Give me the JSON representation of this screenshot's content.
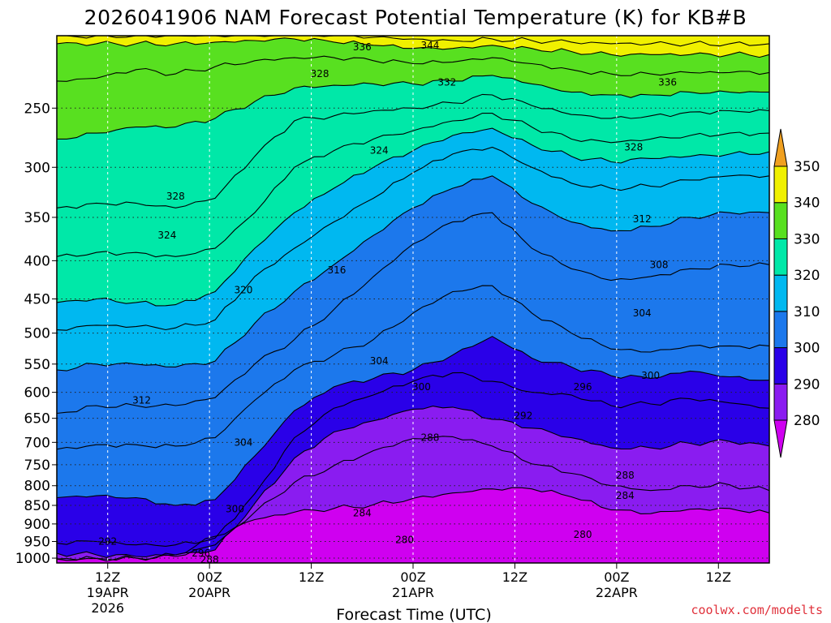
{
  "chart_data": {
    "type": "area",
    "title": "2026041906 NAM Forecast Potential Temperature (K) for KB#B",
    "xlabel": "Forecast Time (UTC)",
    "ylabel": "",
    "credit": "coolwx.com/modelts",
    "y_ticks": [
      250,
      300,
      350,
      400,
      450,
      500,
      550,
      600,
      650,
      700,
      750,
      800,
      850,
      900,
      950,
      1000
    ],
    "ylim": [
      200,
      1015
    ],
    "y_scale": "log-pressure (inverted)",
    "x_range_hours": [
      0,
      84
    ],
    "x_ticks": [
      {
        "hour": 6,
        "line1": "12Z",
        "line2": "19APR",
        "line3": "2026"
      },
      {
        "hour": 18,
        "line1": "00Z",
        "line2": "20APR",
        "line3": ""
      },
      {
        "hour": 30,
        "line1": "12Z",
        "line2": "",
        "line3": ""
      },
      {
        "hour": 42,
        "line1": "00Z",
        "line2": "21APR",
        "line3": ""
      },
      {
        "hour": 54,
        "line1": "12Z",
        "line2": "",
        "line3": ""
      },
      {
        "hour": 66,
        "line1": "00Z",
        "line2": "22APR",
        "line3": ""
      },
      {
        "hour": 78,
        "line1": "12Z",
        "line2": "",
        "line3": ""
      }
    ],
    "colorbar": {
      "levels": [
        280,
        290,
        300,
        310,
        320,
        330,
        340,
        350
      ],
      "colors": [
        "#cf00f0",
        "#8a1cf0",
        "#2a00e8",
        "#1c78ec",
        "#00b8f0",
        "#00e8a8",
        "#58e020",
        "#f0f000",
        "#f0a020"
      ]
    },
    "series": [
      {
        "value": 284,
        "p": [
          1003,
          1001,
          1000,
          990,
          935,
          888,
          868,
          858,
          848,
          832,
          818,
          808,
          808,
          828,
          862,
          872,
          860,
          858,
          870
        ]
      },
      {
        "value": 288,
        "p": [
          1003,
          1001,
          1000,
          995,
          960,
          868,
          792,
          752,
          718,
          692,
          688,
          708,
          748,
          770,
          800,
          812,
          800,
          798,
          812
        ]
      },
      {
        "value": 292,
        "p": [
          985,
          990,
          995,
          990,
          975,
          845,
          735,
          678,
          655,
          632,
          628,
          652,
          670,
          690,
          712,
          712,
          702,
          698,
          708
        ]
      },
      {
        "value": 296,
        "p": [
          955,
          950,
          960,
          960,
          940,
          820,
          690,
          630,
          605,
          580,
          565,
          580,
          600,
          605,
          625,
          622,
          612,
          620,
          630
        ]
      },
      {
        "value": 300,
        "p": [
          830,
          825,
          830,
          850,
          835,
          730,
          635,
          590,
          575,
          560,
          535,
          505,
          540,
          555,
          570,
          575,
          562,
          572,
          578
        ]
      },
      {
        "value": 304,
        "p": [
          715,
          705,
          705,
          708,
          690,
          615,
          560,
          535,
          510,
          470,
          440,
          432,
          470,
          500,
          525,
          530,
          520,
          520,
          520
        ]
      },
      {
        "value": 308,
        "p": [
          640,
          625,
          625,
          625,
          610,
          550,
          510,
          465,
          420,
          380,
          355,
          345,
          385,
          410,
          425,
          420,
          410,
          405,
          405
        ]
      },
      {
        "value": 312,
        "p": [
          560,
          550,
          550,
          555,
          545,
          485,
          440,
          405,
          370,
          340,
          320,
          308,
          335,
          355,
          365,
          360,
          350,
          345,
          345
        ]
      },
      {
        "value": 316,
        "p": [
          495,
          488,
          490,
          492,
          480,
          420,
          385,
          355,
          330,
          305,
          288,
          282,
          300,
          315,
          320,
          318,
          312,
          308,
          308
        ]
      },
      {
        "value": 320,
        "p": [
          455,
          450,
          455,
          458,
          440,
          385,
          345,
          320,
          300,
          285,
          272,
          266,
          280,
          290,
          295,
          292,
          290,
          288,
          286
        ]
      },
      {
        "value": 324,
        "p": [
          395,
          390,
          390,
          395,
          385,
          345,
          300,
          285,
          275,
          268,
          260,
          254,
          265,
          275,
          278,
          275,
          272,
          270,
          270
        ]
      },
      {
        "value": 328,
        "p": [
          340,
          335,
          335,
          340,
          330,
          290,
          260,
          256,
          252,
          250,
          246,
          240,
          248,
          255,
          258,
          256,
          253,
          252,
          252
        ]
      },
      {
        "value": 332,
        "p": [
          275,
          270,
          265,
          265,
          258,
          245,
          235,
          233,
          232,
          232,
          230,
          226,
          232,
          238,
          240,
          240,
          238,
          238,
          238
        ]
      },
      {
        "value": 336,
        "p": [
          230,
          228,
          222,
          225,
          220,
          216,
          214,
          214,
          216,
          218,
          217,
          214,
          218,
          222,
          225,
          225,
          224,
          224,
          224
        ]
      },
      {
        "value": 340,
        "p": [
          205,
          205,
          205,
          205,
          204,
          203,
          202,
          204,
          206,
          208,
          208,
          206,
          208,
          210,
          212,
          212,
          212,
          212,
          212
        ]
      },
      {
        "value": 344,
        "p": [
          200,
          200,
          200,
          200,
          200,
          200,
          200,
          200,
          201,
          202,
          203,
          202,
          203,
          204,
          205,
          205,
          205,
          205,
          205
        ]
      }
    ],
    "contour_labels": [
      {
        "text": "344",
        "hour": 44,
        "p": 206
      },
      {
        "text": "336",
        "hour": 36,
        "p": 207
      },
      {
        "text": "328",
        "hour": 31,
        "p": 225
      },
      {
        "text": "332",
        "hour": 46,
        "p": 231
      },
      {
        "text": "336",
        "hour": 72,
        "p": 231
      },
      {
        "text": "324",
        "hour": 38,
        "p": 285
      },
      {
        "text": "328",
        "hour": 68,
        "p": 282
      },
      {
        "text": "328",
        "hour": 14,
        "p": 328
      },
      {
        "text": "324",
        "hour": 13,
        "p": 370
      },
      {
        "text": "312",
        "hour": 69,
        "p": 352
      },
      {
        "text": "316",
        "hour": 33,
        "p": 412
      },
      {
        "text": "308",
        "hour": 71,
        "p": 405
      },
      {
        "text": "320",
        "hour": 22,
        "p": 438
      },
      {
        "text": "304",
        "hour": 69,
        "p": 470
      },
      {
        "text": "304",
        "hour": 38,
        "p": 545
      },
      {
        "text": "300",
        "hour": 43,
        "p": 590
      },
      {
        "text": "296",
        "hour": 62,
        "p": 590
      },
      {
        "text": "300",
        "hour": 70,
        "p": 570
      },
      {
        "text": "312",
        "hour": 10,
        "p": 615
      },
      {
        "text": "292",
        "hour": 55,
        "p": 645
      },
      {
        "text": "288",
        "hour": 44,
        "p": 690
      },
      {
        "text": "304",
        "hour": 22,
        "p": 700
      },
      {
        "text": "288",
        "hour": 67,
        "p": 775
      },
      {
        "text": "284",
        "hour": 67,
        "p": 825
      },
      {
        "text": "300",
        "hour": 21,
        "p": 860
      },
      {
        "text": "284",
        "hour": 36,
        "p": 870
      },
      {
        "text": "280",
        "hour": 62,
        "p": 930
      },
      {
        "text": "280",
        "hour": 41,
        "p": 945
      },
      {
        "text": "292",
        "hour": 6,
        "p": 950
      },
      {
        "text": "296",
        "hour": 17,
        "p": 985
      },
      {
        "text": "288",
        "hour": 18,
        "p": 1005
      }
    ]
  }
}
